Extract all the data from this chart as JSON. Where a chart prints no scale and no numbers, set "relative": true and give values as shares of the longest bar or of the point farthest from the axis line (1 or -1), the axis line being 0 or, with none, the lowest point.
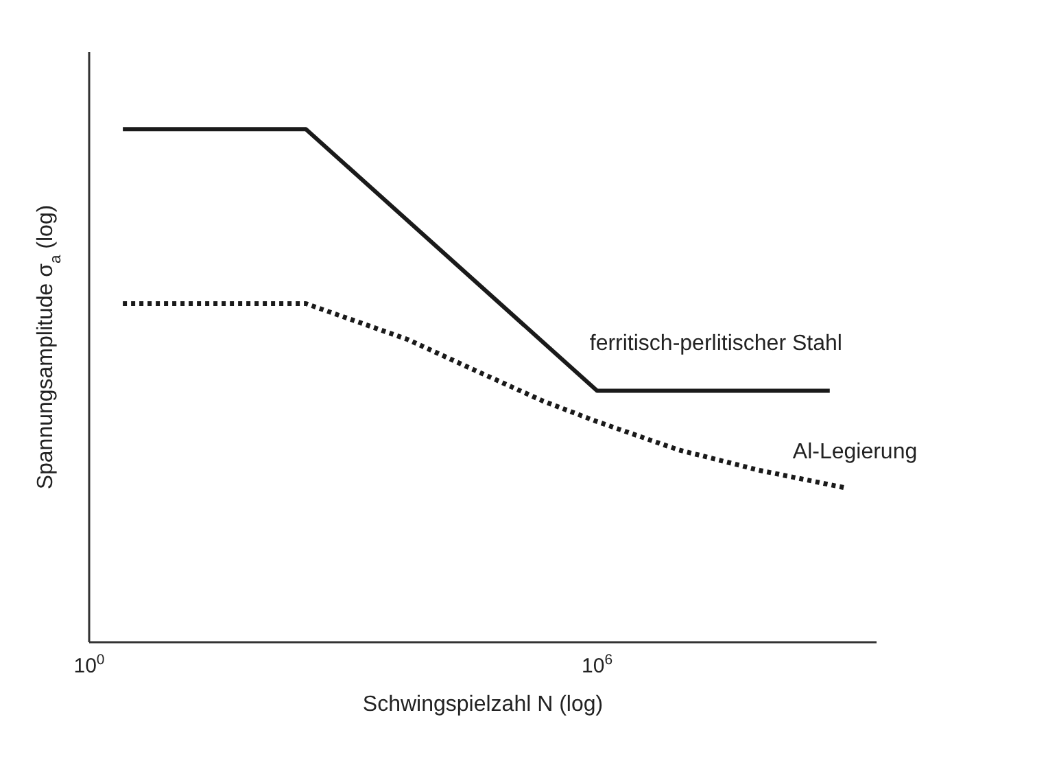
{
  "chart_data": {
    "type": "line",
    "relative": true,
    "log": "x",
    "xlabel": "Schwingspielzahl N (log)",
    "ylabel": "Spannungsamplitude σ$_{a}$ (log)",
    "xlim": [
      1,
      2000000000
    ],
    "xticks": [
      {
        "value": 1,
        "label": "10$^{0}$"
      },
      {
        "value": 1000000,
        "label": "10$^{6}$"
      }
    ],
    "grid": false,
    "legend": false,
    "marker": "none",
    "series": [
      {
        "name": "ferritisch-perlitischer Stahl",
        "color": "#1a1a1a",
        "line_style": "solid",
        "x": [
          2.5,
          363,
          1000000,
          560000000
        ],
        "values": [
          1,
          1,
          0.49,
          0.49
        ]
      },
      {
        "name": "Al-Legierung",
        "color": "#1a1a1a",
        "line_style": "dotted",
        "x": [
          2.5,
          363,
          5800,
          36000,
          230000,
          1000000,
          9100000,
          83000000,
          910000000
        ],
        "values": [
          0.66,
          0.66,
          0.59,
          0.53,
          0.47,
          0.43,
          0.375,
          0.335,
          0.3
        ]
      }
    ]
  }
}
